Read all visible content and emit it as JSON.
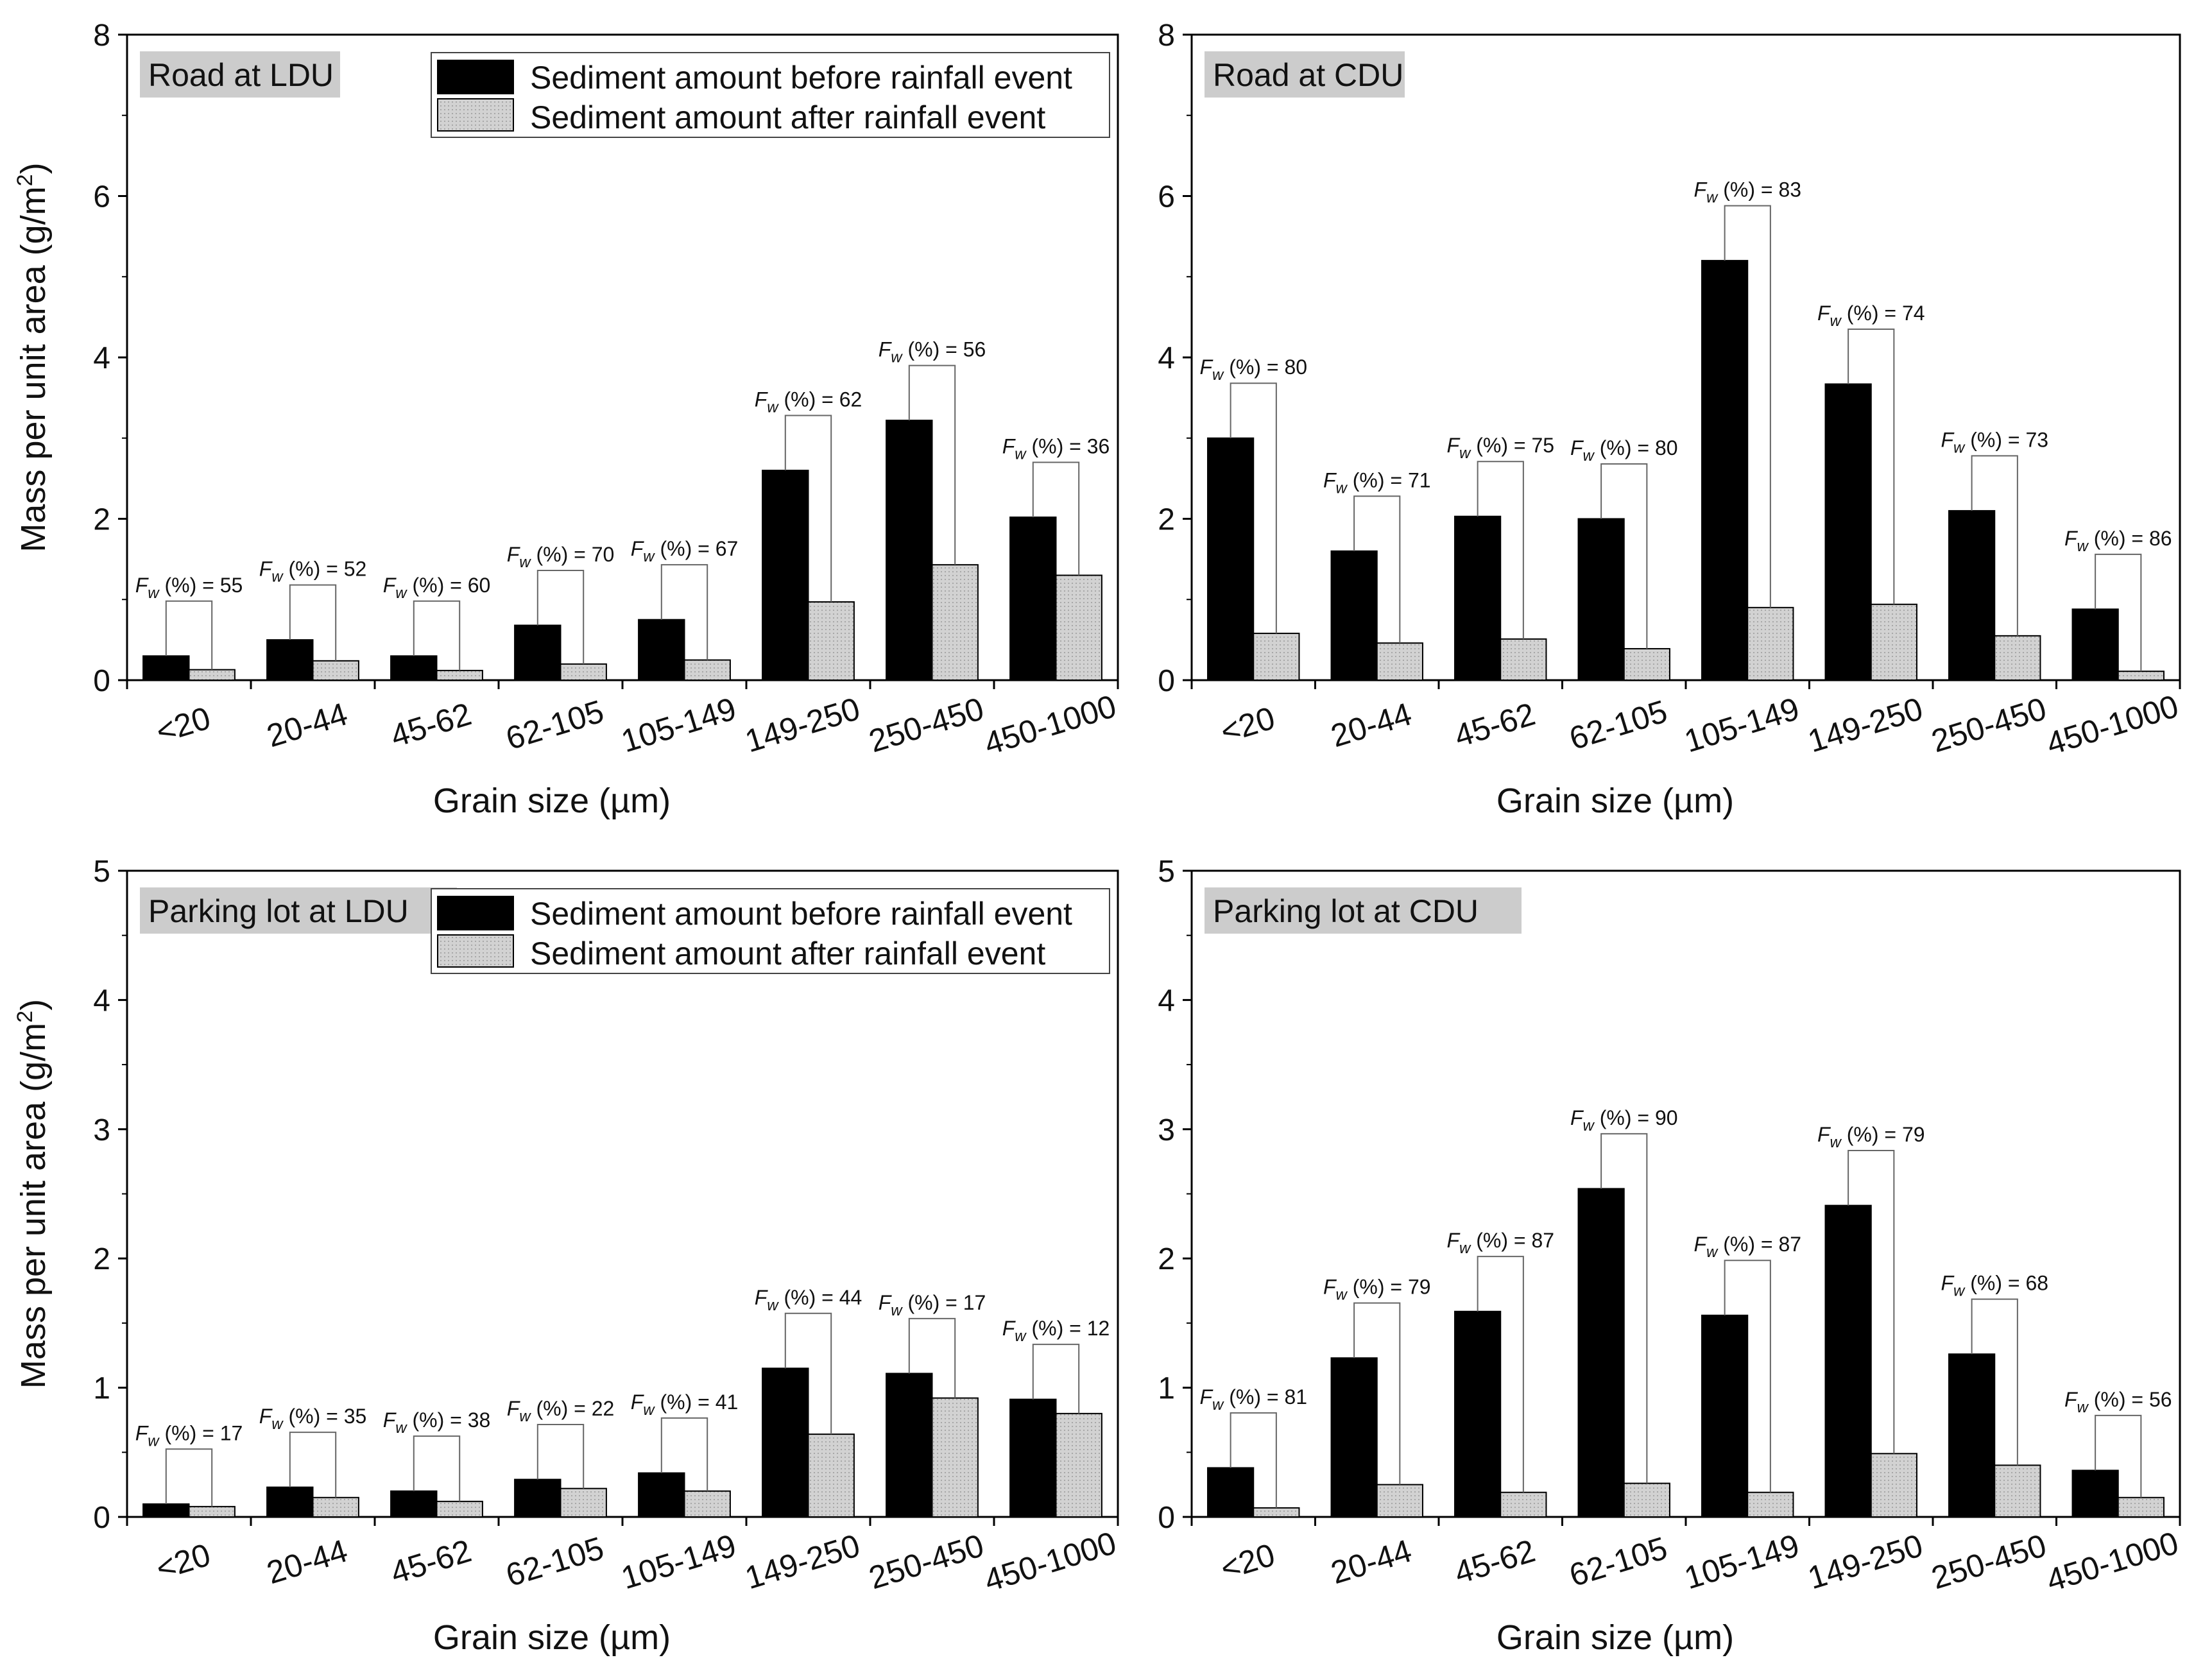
{
  "figure": {
    "legend": {
      "before": "Sediment amount before rainfall event",
      "after": "Sediment amount after rainfall event"
    },
    "colors": {
      "before": "#000000",
      "after": "#cfcfcf",
      "panel_label_bg": "#cccccc",
      "bracket": "#666666"
    },
    "fw_label": {
      "symbol": "F",
      "subscript": "w",
      "suffix": " (%) = "
    }
  },
  "chart_data": [
    {
      "type": "bar",
      "title": "Road at LDU",
      "xlabel": "Grain size (µm)",
      "ylabel": "Mass per unit area (g/m2)",
      "ylabel_parts": {
        "main": "Mass per unit area (g/m",
        "sup": "2",
        "end": ")"
      },
      "ylim": [
        0,
        8
      ],
      "yticks": [
        0,
        2,
        4,
        6,
        8
      ],
      "show_legend": true,
      "categories": [
        "<20",
        "20-44",
        "45-62",
        "62-105",
        "105-149",
        "149-250",
        "250-450",
        "450-1000"
      ],
      "series": [
        {
          "name": "Sediment amount before rainfall event",
          "values": [
            0.3,
            0.5,
            0.3,
            0.68,
            0.75,
            2.6,
            3.22,
            2.02
          ]
        },
        {
          "name": "Sediment amount after rainfall event",
          "values": [
            0.13,
            0.24,
            0.12,
            0.2,
            0.25,
            0.97,
            1.43,
            1.3
          ]
        }
      ],
      "fw_percent": [
        55,
        52,
        60,
        70,
        67,
        62,
        56,
        36
      ]
    },
    {
      "type": "bar",
      "title": "Road at CDU",
      "xlabel": "Grain size (µm)",
      "ylabel": "",
      "ylim": [
        0,
        8
      ],
      "yticks": [
        0,
        2,
        4,
        6,
        8
      ],
      "show_legend": false,
      "categories": [
        "<20",
        "20-44",
        "45-62",
        "62-105",
        "105-149",
        "149-250",
        "250-450",
        "450-1000"
      ],
      "series": [
        {
          "name": "Sediment amount before rainfall event",
          "values": [
            3.0,
            1.6,
            2.03,
            2.0,
            5.2,
            3.67,
            2.1,
            0.88
          ]
        },
        {
          "name": "Sediment amount after rainfall event",
          "values": [
            0.58,
            0.46,
            0.51,
            0.39,
            0.9,
            0.94,
            0.55,
            0.11
          ]
        }
      ],
      "fw_percent": [
        80,
        71,
        75,
        80,
        83,
        74,
        73,
        86
      ]
    },
    {
      "type": "bar",
      "title": "Parking lot at LDU",
      "xlabel": "Grain size (µm)",
      "ylabel": "Mass per unit area (g/m2)",
      "ylabel_parts": {
        "main": "Mass per unit area (g/m",
        "sup": "2",
        "end": ")"
      },
      "ylim": [
        0,
        5
      ],
      "yticks": [
        0,
        1,
        2,
        3,
        4,
        5
      ],
      "show_legend": true,
      "categories": [
        "<20",
        "20-44",
        "45-62",
        "62-105",
        "105-149",
        "149-250",
        "250-450",
        "450-1000"
      ],
      "series": [
        {
          "name": "Sediment amount before rainfall event",
          "values": [
            0.1,
            0.23,
            0.2,
            0.29,
            0.34,
            1.15,
            1.11,
            0.91
          ]
        },
        {
          "name": "Sediment amount after rainfall event",
          "values": [
            0.08,
            0.15,
            0.12,
            0.22,
            0.2,
            0.64,
            0.92,
            0.8
          ]
        }
      ],
      "fw_percent": [
        17,
        35,
        38,
        22,
        41,
        44,
        17,
        12
      ]
    },
    {
      "type": "bar",
      "title": "Parking lot at CDU",
      "xlabel": "Grain size (µm)",
      "ylabel": "",
      "ylim": [
        0,
        5
      ],
      "yticks": [
        0,
        1,
        2,
        3,
        4,
        5
      ],
      "show_legend": false,
      "categories": [
        "<20",
        "20-44",
        "45-62",
        "62-105",
        "105-149",
        "149-250",
        "250-450",
        "450-1000"
      ],
      "series": [
        {
          "name": "Sediment amount before rainfall event",
          "values": [
            0.38,
            1.23,
            1.59,
            2.54,
            1.56,
            2.41,
            1.26,
            0.36
          ]
        },
        {
          "name": "Sediment amount after rainfall event",
          "values": [
            0.07,
            0.25,
            0.19,
            0.26,
            0.19,
            0.49,
            0.4,
            0.15
          ]
        }
      ],
      "fw_percent": [
        81,
        79,
        87,
        90,
        87,
        79,
        68,
        56
      ]
    }
  ]
}
